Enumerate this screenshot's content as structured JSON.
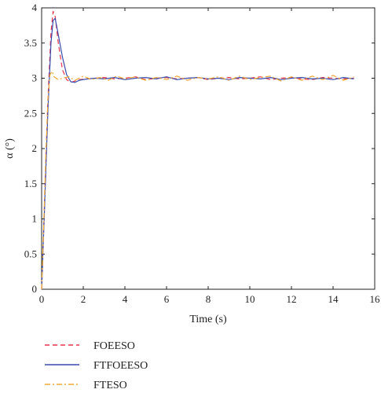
{
  "chart_data": {
    "type": "line",
    "xlabel": "Time (s)",
    "ylabel": "α (°)",
    "xlim": [
      0,
      16
    ],
    "ylim": [
      0,
      4
    ],
    "x_ticks": [
      "0",
      "2",
      "4",
      "6",
      "8",
      "10",
      "12",
      "14",
      "16"
    ],
    "y_ticks": [
      "0",
      "0.5",
      "1",
      "1.5",
      "2",
      "2.5",
      "3",
      "3.5",
      "4"
    ],
    "grid": false,
    "legend_position": "bottom-left, below plot",
    "series": [
      {
        "name": "FOEESO",
        "color": "#e8334a",
        "style": "dashed",
        "x": [
          0,
          0.15,
          0.3,
          0.45,
          0.55,
          0.65,
          0.8,
          1.0,
          1.2,
          1.4,
          1.6,
          1.8,
          2.2,
          2.6,
          3.0,
          3.5,
          4.0,
          4.5,
          5.0,
          5.5,
          6.0,
          6.5,
          7.0,
          7.5,
          8.0,
          8.5,
          9.0,
          9.5,
          10.0,
          10.5,
          11.0,
          11.5,
          12.0,
          12.5,
          13.0,
          13.5,
          14.0,
          14.5,
          15.0
        ],
        "y": [
          0,
          1.35,
          2.7,
          3.65,
          3.95,
          3.88,
          3.5,
          3.12,
          2.98,
          2.94,
          2.96,
          2.98,
          2.99,
          3.0,
          3.01,
          2.99,
          3.0,
          3.02,
          2.98,
          3.0,
          3.01,
          2.99,
          3.0,
          3.01,
          2.98,
          3.0,
          3.01,
          2.99,
          3.0,
          3.02,
          2.98,
          3.0,
          3.01,
          2.99,
          2.98,
          3.01,
          3.0,
          2.99,
          3.0
        ]
      },
      {
        "name": "FTFOEESO",
        "color": "#3a4db0",
        "style": "solid",
        "x": [
          0,
          0.15,
          0.3,
          0.45,
          0.55,
          0.65,
          0.8,
          1.0,
          1.2,
          1.4,
          1.6,
          1.8,
          2.2,
          2.6,
          3.0,
          3.5,
          4.0,
          4.5,
          5.0,
          5.5,
          6.0,
          6.5,
          7.0,
          7.5,
          8.0,
          8.5,
          9.0,
          9.5,
          10.0,
          10.5,
          11.0,
          11.5,
          12.0,
          12.5,
          13.0,
          13.5,
          14.0,
          14.5,
          15.0
        ],
        "y": [
          0,
          1.25,
          2.55,
          3.5,
          3.82,
          3.85,
          3.62,
          3.3,
          3.05,
          2.95,
          2.94,
          2.97,
          2.99,
          3.0,
          2.99,
          3.01,
          2.98,
          3.0,
          3.01,
          2.99,
          3.02,
          2.98,
          3.0,
          3.01,
          2.99,
          3.0,
          2.98,
          3.01,
          3.0,
          2.99,
          3.01,
          2.98,
          3.0,
          3.01,
          2.99,
          3.0,
          2.98,
          3.01,
          2.99
        ]
      },
      {
        "name": "FTESO",
        "color": "#f0a830",
        "style": "dashdot",
        "x": [
          0,
          0.1,
          0.2,
          0.3,
          0.4,
          0.5,
          0.6,
          0.8,
          1.0,
          1.3,
          1.6,
          2.0,
          2.4,
          2.8,
          3.2,
          3.6,
          4.0,
          4.5,
          5.0,
          5.5,
          6.0,
          6.5,
          7.0,
          7.5,
          8.0,
          8.5,
          9.0,
          9.5,
          10.0,
          10.5,
          11.0,
          11.5,
          12.0,
          12.5,
          13.0,
          13.5,
          14.0,
          14.5,
          15.0
        ],
        "y": [
          0,
          0.9,
          1.9,
          2.7,
          3.05,
          3.1,
          3.02,
          2.98,
          3.0,
          3.02,
          2.97,
          3.03,
          2.98,
          3.01,
          2.97,
          3.03,
          2.99,
          3.02,
          2.97,
          3.01,
          2.98,
          3.03,
          2.97,
          3.01,
          2.99,
          3.02,
          2.97,
          3.03,
          2.98,
          3.01,
          3.03,
          2.96,
          3.02,
          2.97,
          3.03,
          2.98,
          3.04,
          2.97,
          3.02
        ]
      }
    ]
  }
}
